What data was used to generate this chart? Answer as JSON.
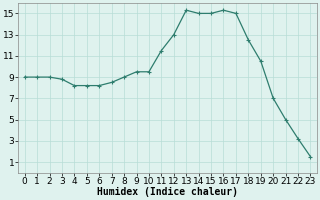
{
  "x": [
    0,
    1,
    2,
    3,
    4,
    5,
    6,
    7,
    8,
    9,
    10,
    11,
    12,
    13,
    14,
    15,
    16,
    17,
    18,
    19,
    20,
    21,
    22,
    23
  ],
  "y": [
    9.0,
    9.0,
    9.0,
    8.8,
    8.2,
    8.2,
    8.2,
    8.5,
    9.0,
    9.5,
    9.5,
    11.5,
    13.0,
    15.3,
    15.0,
    15.0,
    15.3,
    15.0,
    12.5,
    10.5,
    7.0,
    5.0,
    3.2,
    1.5
  ],
  "line_color": "#2e7d6e",
  "marker": "+",
  "marker_size": 3,
  "marker_lw": 0.8,
  "line_width": 0.9,
  "bg_color": "#dff2ee",
  "grid_color": "#b8ddd6",
  "xlabel": "Humidex (Indice chaleur)",
  "xlim": [
    -0.5,
    23.5
  ],
  "ylim": [
    0,
    16
  ],
  "yticks": [
    1,
    3,
    5,
    7,
    9,
    11,
    13,
    15
  ],
  "xticks": [
    0,
    1,
    2,
    3,
    4,
    5,
    6,
    7,
    8,
    9,
    10,
    11,
    12,
    13,
    14,
    15,
    16,
    17,
    18,
    19,
    20,
    21,
    22,
    23
  ],
  "label_fontsize": 7,
  "tick_fontsize": 6.5
}
